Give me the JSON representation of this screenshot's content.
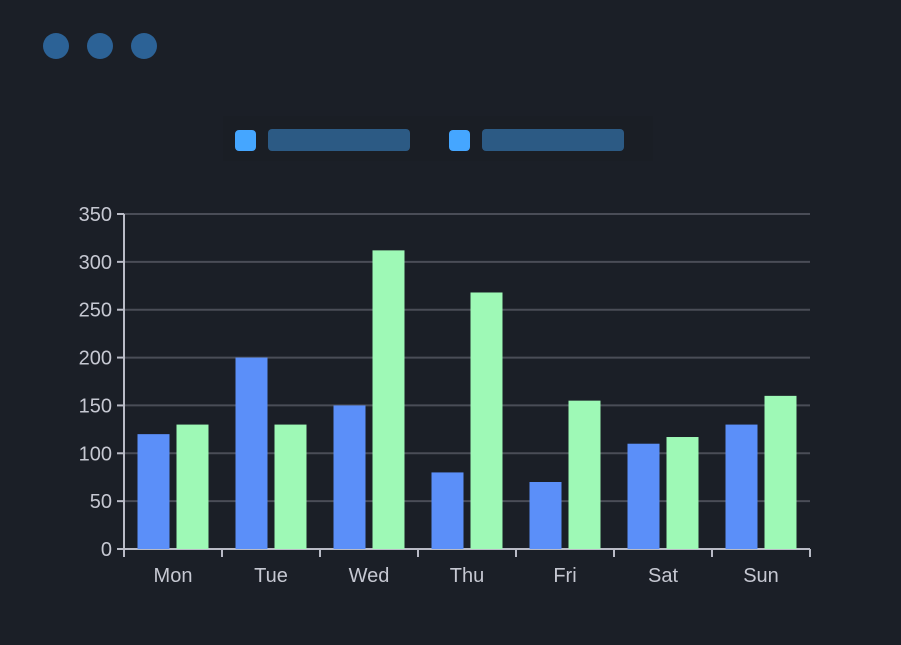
{
  "window": {
    "controls": [
      "dot-1",
      "dot-2",
      "dot-3"
    ],
    "control_color": "#2c6296"
  },
  "legend": {
    "items": [
      {
        "color": "#45a6ff"
      },
      {
        "color": "#45a6ff"
      }
    ],
    "placement": "top"
  },
  "chart_data": {
    "type": "bar",
    "categories": [
      "Mon",
      "Tue",
      "Wed",
      "Thu",
      "Fri",
      "Sat",
      "Sun"
    ],
    "series": [
      {
        "values": [
          120,
          200,
          150,
          80,
          70,
          110,
          130
        ],
        "color": "#5b8ff9"
      },
      {
        "values": [
          130,
          130,
          312,
          268,
          155,
          117,
          160
        ],
        "color": "#9ef9b6"
      }
    ],
    "yticks": [
      "0",
      "50",
      "100",
      "150",
      "200",
      "250",
      "300",
      "350"
    ],
    "ylim": [
      0,
      350
    ],
    "grid": true,
    "title": "",
    "xlabel": "",
    "ylabel": ""
  }
}
